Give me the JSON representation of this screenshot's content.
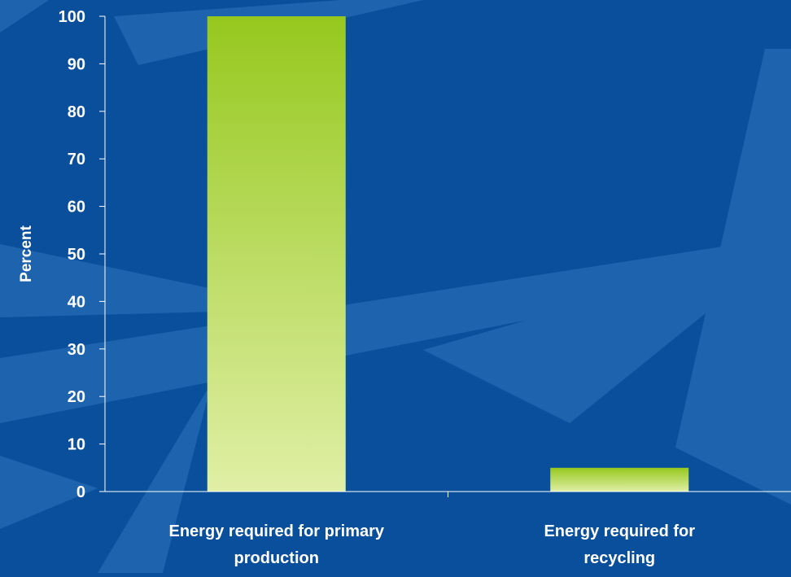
{
  "colors": {
    "background": "#0a4f9c",
    "shard": "#2f74bd",
    "axis": "#ffffff",
    "text": "#ffffff",
    "bar_top": "#96c81e",
    "bar_bottom": "#e0efa6"
  },
  "chart_data": {
    "type": "bar",
    "categories": [
      [
        "Energy required for primary",
        "production"
      ],
      [
        "Energy required for",
        "recycling"
      ]
    ],
    "values": [
      100,
      5
    ],
    "title": "",
    "xlabel": "",
    "ylabel": "Percent",
    "ylim": [
      0,
      100
    ],
    "yticks": [
      0,
      10,
      20,
      30,
      40,
      50,
      60,
      70,
      80,
      90,
      100
    ],
    "grid": false,
    "legend": "none"
  }
}
